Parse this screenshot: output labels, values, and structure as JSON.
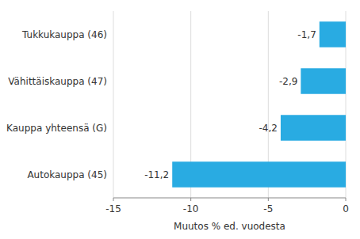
{
  "chart_data": {
    "type": "bar",
    "orientation": "horizontal",
    "categories": [
      "Autokauppa (45)",
      "Kauppa yhteensä (G)",
      "Vähittäiskauppa (47)",
      "Tukkukauppa (46)"
    ],
    "values": [
      -11.2,
      -4.2,
      -2.9,
      -1.7
    ],
    "value_labels": [
      "-11,2",
      "-4,2",
      "-2,9",
      "-1,7"
    ],
    "data_labels": true,
    "color": "#29abe2",
    "xlabel": "Muutos % ed. vuodesta",
    "xlim": [
      -15,
      0
    ],
    "xticks": [
      -15,
      -10,
      -5,
      0
    ],
    "grid": true
  }
}
